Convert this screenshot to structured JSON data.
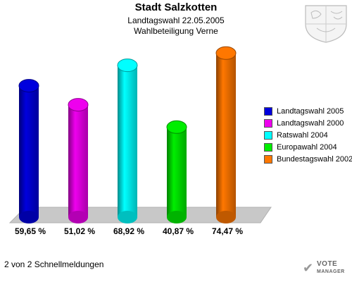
{
  "header": {
    "title": "Stadt Salzkotten",
    "subtitle1": "Landtagswahl 22.05.2005",
    "subtitle2": "Wahlbeteiligung Verne"
  },
  "chart_data": {
    "type": "bar",
    "title": "Stadt Salzkotten",
    "categories": [
      "Landtagswahl 2005",
      "Landtagswahl 2000",
      "Ratswahl 2004",
      "Europawahl 2004",
      "Bundestagswahl 2002"
    ],
    "values": [
      59.65,
      51.02,
      68.92,
      40.87,
      74.47
    ],
    "value_labels": [
      "59,65 %",
      "51,02 %",
      "68,92 %",
      "40,87 %",
      "74,47 %"
    ],
    "colors": [
      "#0000dd",
      "#ee00ee",
      "#00ffff",
      "#00ee00",
      "#ff7700"
    ],
    "ylim": [
      0,
      80
    ],
    "grid": false,
    "legend": "right"
  },
  "footer": {
    "text": "2 von 2 Schnellmeldungen"
  },
  "logo": {
    "line1": "VOTE",
    "line2": "MANAGER",
    "icon": "checkmark-icon"
  },
  "crest": {
    "icon": "coat-of-arms-icon"
  }
}
